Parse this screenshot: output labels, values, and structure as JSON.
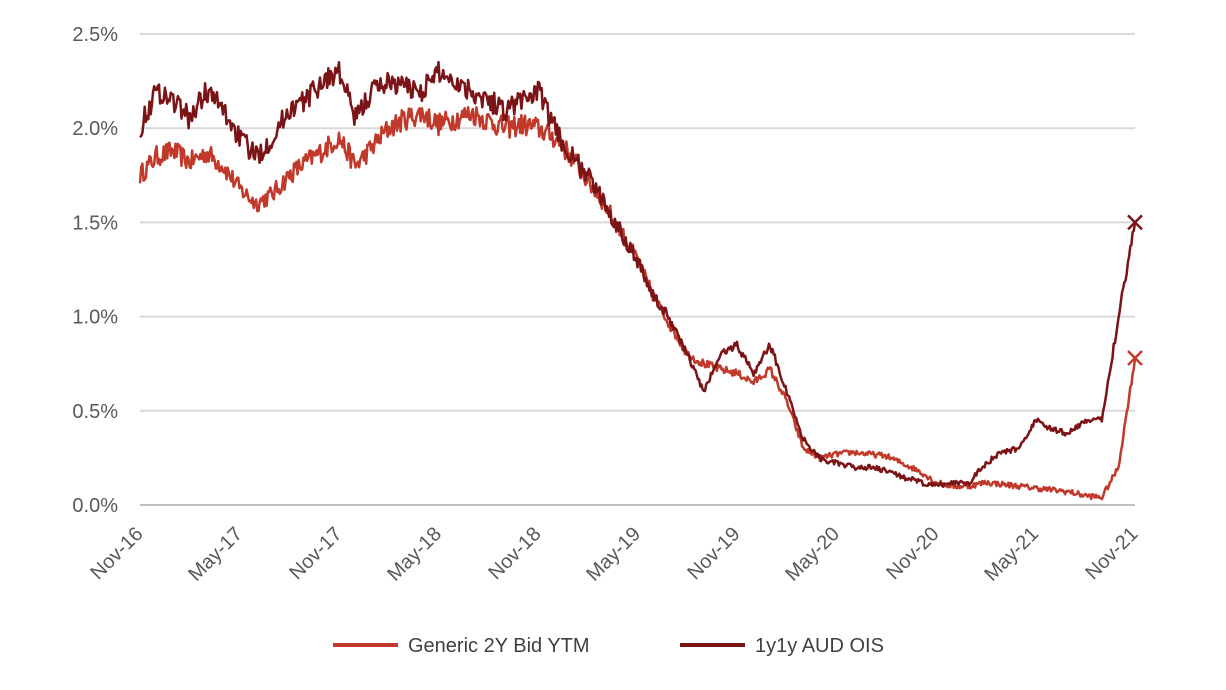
{
  "chart_data": {
    "type": "line",
    "title": "",
    "xlabel": "",
    "ylabel": "",
    "ylim": [
      0,
      2.5
    ],
    "y_ticks": [
      "0.0%",
      "0.5%",
      "1.0%",
      "1.5%",
      "2.0%",
      "2.5%"
    ],
    "x_ticks": [
      "Nov-16",
      "May-17",
      "Nov-17",
      "May-18",
      "Nov-18",
      "May-19",
      "Nov-19",
      "May-20",
      "Nov-20",
      "May-21",
      "Nov-21"
    ],
    "grid": "horizontal",
    "legend": "bottom",
    "series": [
      {
        "name": "Generic 2Y Bid YTM",
        "color": "#C0392B",
        "end_marker": "x",
        "x": [
          "Nov-16",
          "Dec-16",
          "Jan-17",
          "Feb-17",
          "Mar-17",
          "Apr-17",
          "May-17",
          "Jun-17",
          "Jul-17",
          "Aug-17",
          "Sep-17",
          "Oct-17",
          "Nov-17",
          "Dec-17",
          "Jan-18",
          "Feb-18",
          "Mar-18",
          "Apr-18",
          "May-18",
          "Jun-18",
          "Jul-18",
          "Aug-18",
          "Sep-18",
          "Oct-18",
          "Nov-18",
          "Dec-18",
          "Jan-19",
          "Feb-19",
          "Mar-19",
          "Apr-19",
          "May-19",
          "Jun-19",
          "Jul-19",
          "Aug-19",
          "Sep-19",
          "Oct-19",
          "Nov-19",
          "Dec-19",
          "Jan-20",
          "Feb-20",
          "Mar-20",
          "Apr-20",
          "May-20",
          "Jun-20",
          "Jul-20",
          "Aug-20",
          "Sep-20",
          "Oct-20",
          "Nov-20",
          "Dec-20",
          "Jan-21",
          "Feb-21",
          "Mar-21",
          "Apr-21",
          "May-21",
          "Jun-21",
          "Jul-21",
          "Aug-21",
          "Sep-21",
          "Oct-21",
          "Nov-21"
        ],
        "values": [
          1.75,
          1.85,
          1.88,
          1.82,
          1.87,
          1.8,
          1.68,
          1.6,
          1.65,
          1.75,
          1.82,
          1.88,
          1.95,
          1.8,
          1.9,
          2.0,
          2.05,
          2.08,
          2.02,
          2.05,
          2.08,
          2.04,
          2.0,
          2.02,
          2.0,
          1.95,
          1.85,
          1.72,
          1.6,
          1.45,
          1.3,
          1.1,
          0.95,
          0.8,
          0.75,
          0.72,
          0.7,
          0.65,
          0.72,
          0.55,
          0.3,
          0.25,
          0.27,
          0.28,
          0.27,
          0.26,
          0.22,
          0.18,
          0.12,
          0.1,
          0.1,
          0.12,
          0.11,
          0.1,
          0.09,
          0.08,
          0.07,
          0.05,
          0.04,
          0.2,
          0.78
        ]
      },
      {
        "name": "1y1y AUD OIS",
        "color": "#7B1416",
        "end_marker": "x",
        "x": [
          "Nov-16",
          "Dec-16",
          "Jan-17",
          "Feb-17",
          "Mar-17",
          "Apr-17",
          "May-17",
          "Jun-17",
          "Jul-17",
          "Aug-17",
          "Sep-17",
          "Oct-17",
          "Nov-17",
          "Dec-17",
          "Jan-18",
          "Feb-18",
          "Mar-18",
          "Apr-18",
          "May-18",
          "Jun-18",
          "Jul-18",
          "Aug-18",
          "Sep-18",
          "Oct-18",
          "Nov-18",
          "Dec-18",
          "Jan-19",
          "Feb-19",
          "Mar-19",
          "Apr-19",
          "May-19",
          "Jun-19",
          "Jul-19",
          "Aug-19",
          "Sep-19",
          "Oct-19",
          "Nov-19",
          "Dec-19",
          "Jan-20",
          "Feb-20",
          "Mar-20",
          "Apr-20",
          "May-20",
          "Jun-20",
          "Jul-20",
          "Aug-20",
          "Sep-20",
          "Oct-20",
          "Nov-20",
          "Dec-20",
          "Jan-21",
          "Feb-21",
          "Mar-21",
          "Apr-21",
          "May-21",
          "Jun-21",
          "Jul-21",
          "Aug-21",
          "Sep-21",
          "Oct-21",
          "Nov-21"
        ],
        "values": [
          2.0,
          2.2,
          2.15,
          2.05,
          2.2,
          2.1,
          1.95,
          1.85,
          1.95,
          2.1,
          2.15,
          2.25,
          2.3,
          2.05,
          2.2,
          2.25,
          2.22,
          2.2,
          2.3,
          2.25,
          2.2,
          2.15,
          2.1,
          2.15,
          2.2,
          2.0,
          1.85,
          1.75,
          1.6,
          1.45,
          1.3,
          1.1,
          0.98,
          0.8,
          0.6,
          0.8,
          0.85,
          0.7,
          0.85,
          0.6,
          0.35,
          0.25,
          0.22,
          0.2,
          0.2,
          0.18,
          0.15,
          0.12,
          0.1,
          0.12,
          0.12,
          0.22,
          0.28,
          0.3,
          0.45,
          0.4,
          0.38,
          0.45,
          0.45,
          1.0,
          1.5
        ]
      }
    ]
  }
}
